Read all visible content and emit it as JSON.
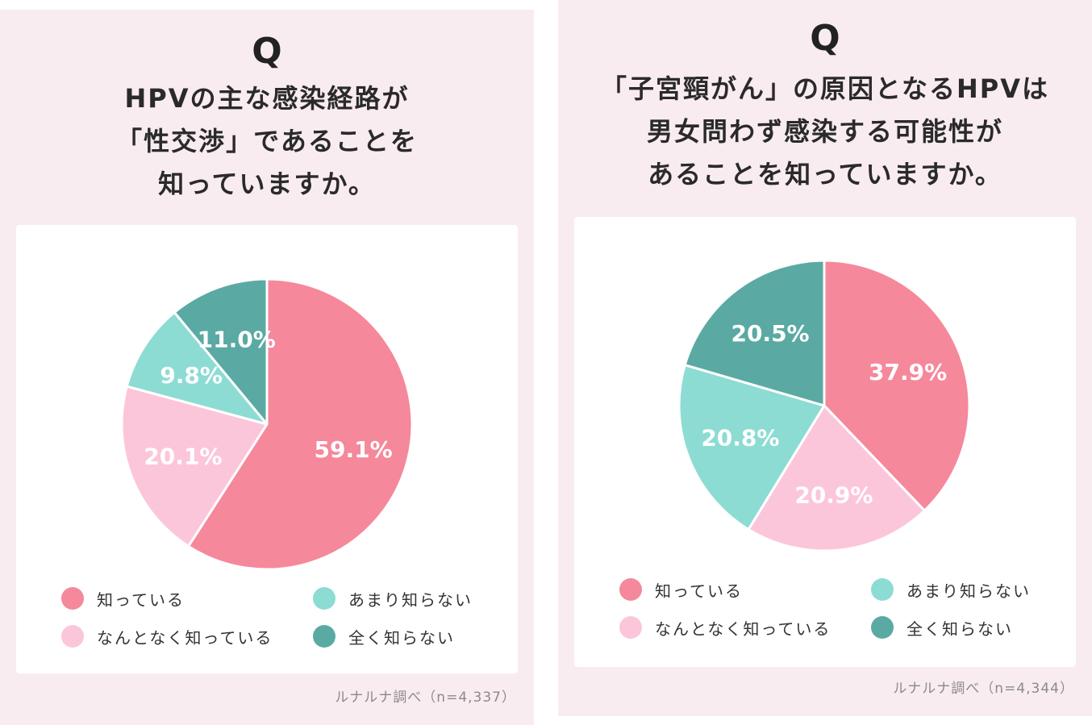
{
  "colors": {
    "panel_bg": "#f9ecf1",
    "card_bg": "#ffffff",
    "know": "#f5889b",
    "somewhat_know": "#fcc6da",
    "not_really_know": "#8cdcd4",
    "dont_know": "#5aaaa3"
  },
  "chart_data": [
    {
      "type": "pie",
      "q_mark": "Q",
      "title_lines": [
        "HPVの主な感染経路が",
        "「性交渉」であることを",
        "知っていますか。"
      ],
      "slices": [
        {
          "label": "知っている",
          "value": 59.1,
          "value_label": "59.1%",
          "color": "#f5889b"
        },
        {
          "label": "なんとなく知っている",
          "value": 20.1,
          "value_label": "20.1%",
          "color": "#fcc6da"
        },
        {
          "label": "あまり知らない",
          "value": 9.8,
          "value_label": "9.8%",
          "color": "#8cdcd4"
        },
        {
          "label": "全く知らない",
          "value": 11.0,
          "value_label": "11.0%",
          "color": "#5aaaa3"
        }
      ],
      "source": "ルナルナ調べ（n=4,337）"
    },
    {
      "type": "pie",
      "q_mark": "Q",
      "title_lines": [
        "「子宮頸がん」の原因となるHPVは",
        "男女問わず感染する可能性が",
        "あることを知っていますか。"
      ],
      "slices": [
        {
          "label": "知っている",
          "value": 37.9,
          "value_label": "37.9%",
          "color": "#f5889b"
        },
        {
          "label": "なんとなく知っている",
          "value": 20.9,
          "value_label": "20.9%",
          "color": "#fcc6da"
        },
        {
          "label": "あまり知らない",
          "value": 20.8,
          "value_label": "20.8%",
          "color": "#8cdcd4"
        },
        {
          "label": "全く知らない",
          "value": 20.5,
          "value_label": "20.5%",
          "color": "#5aaaa3"
        }
      ],
      "source": "ルナルナ調べ（n=4,344）"
    }
  ]
}
